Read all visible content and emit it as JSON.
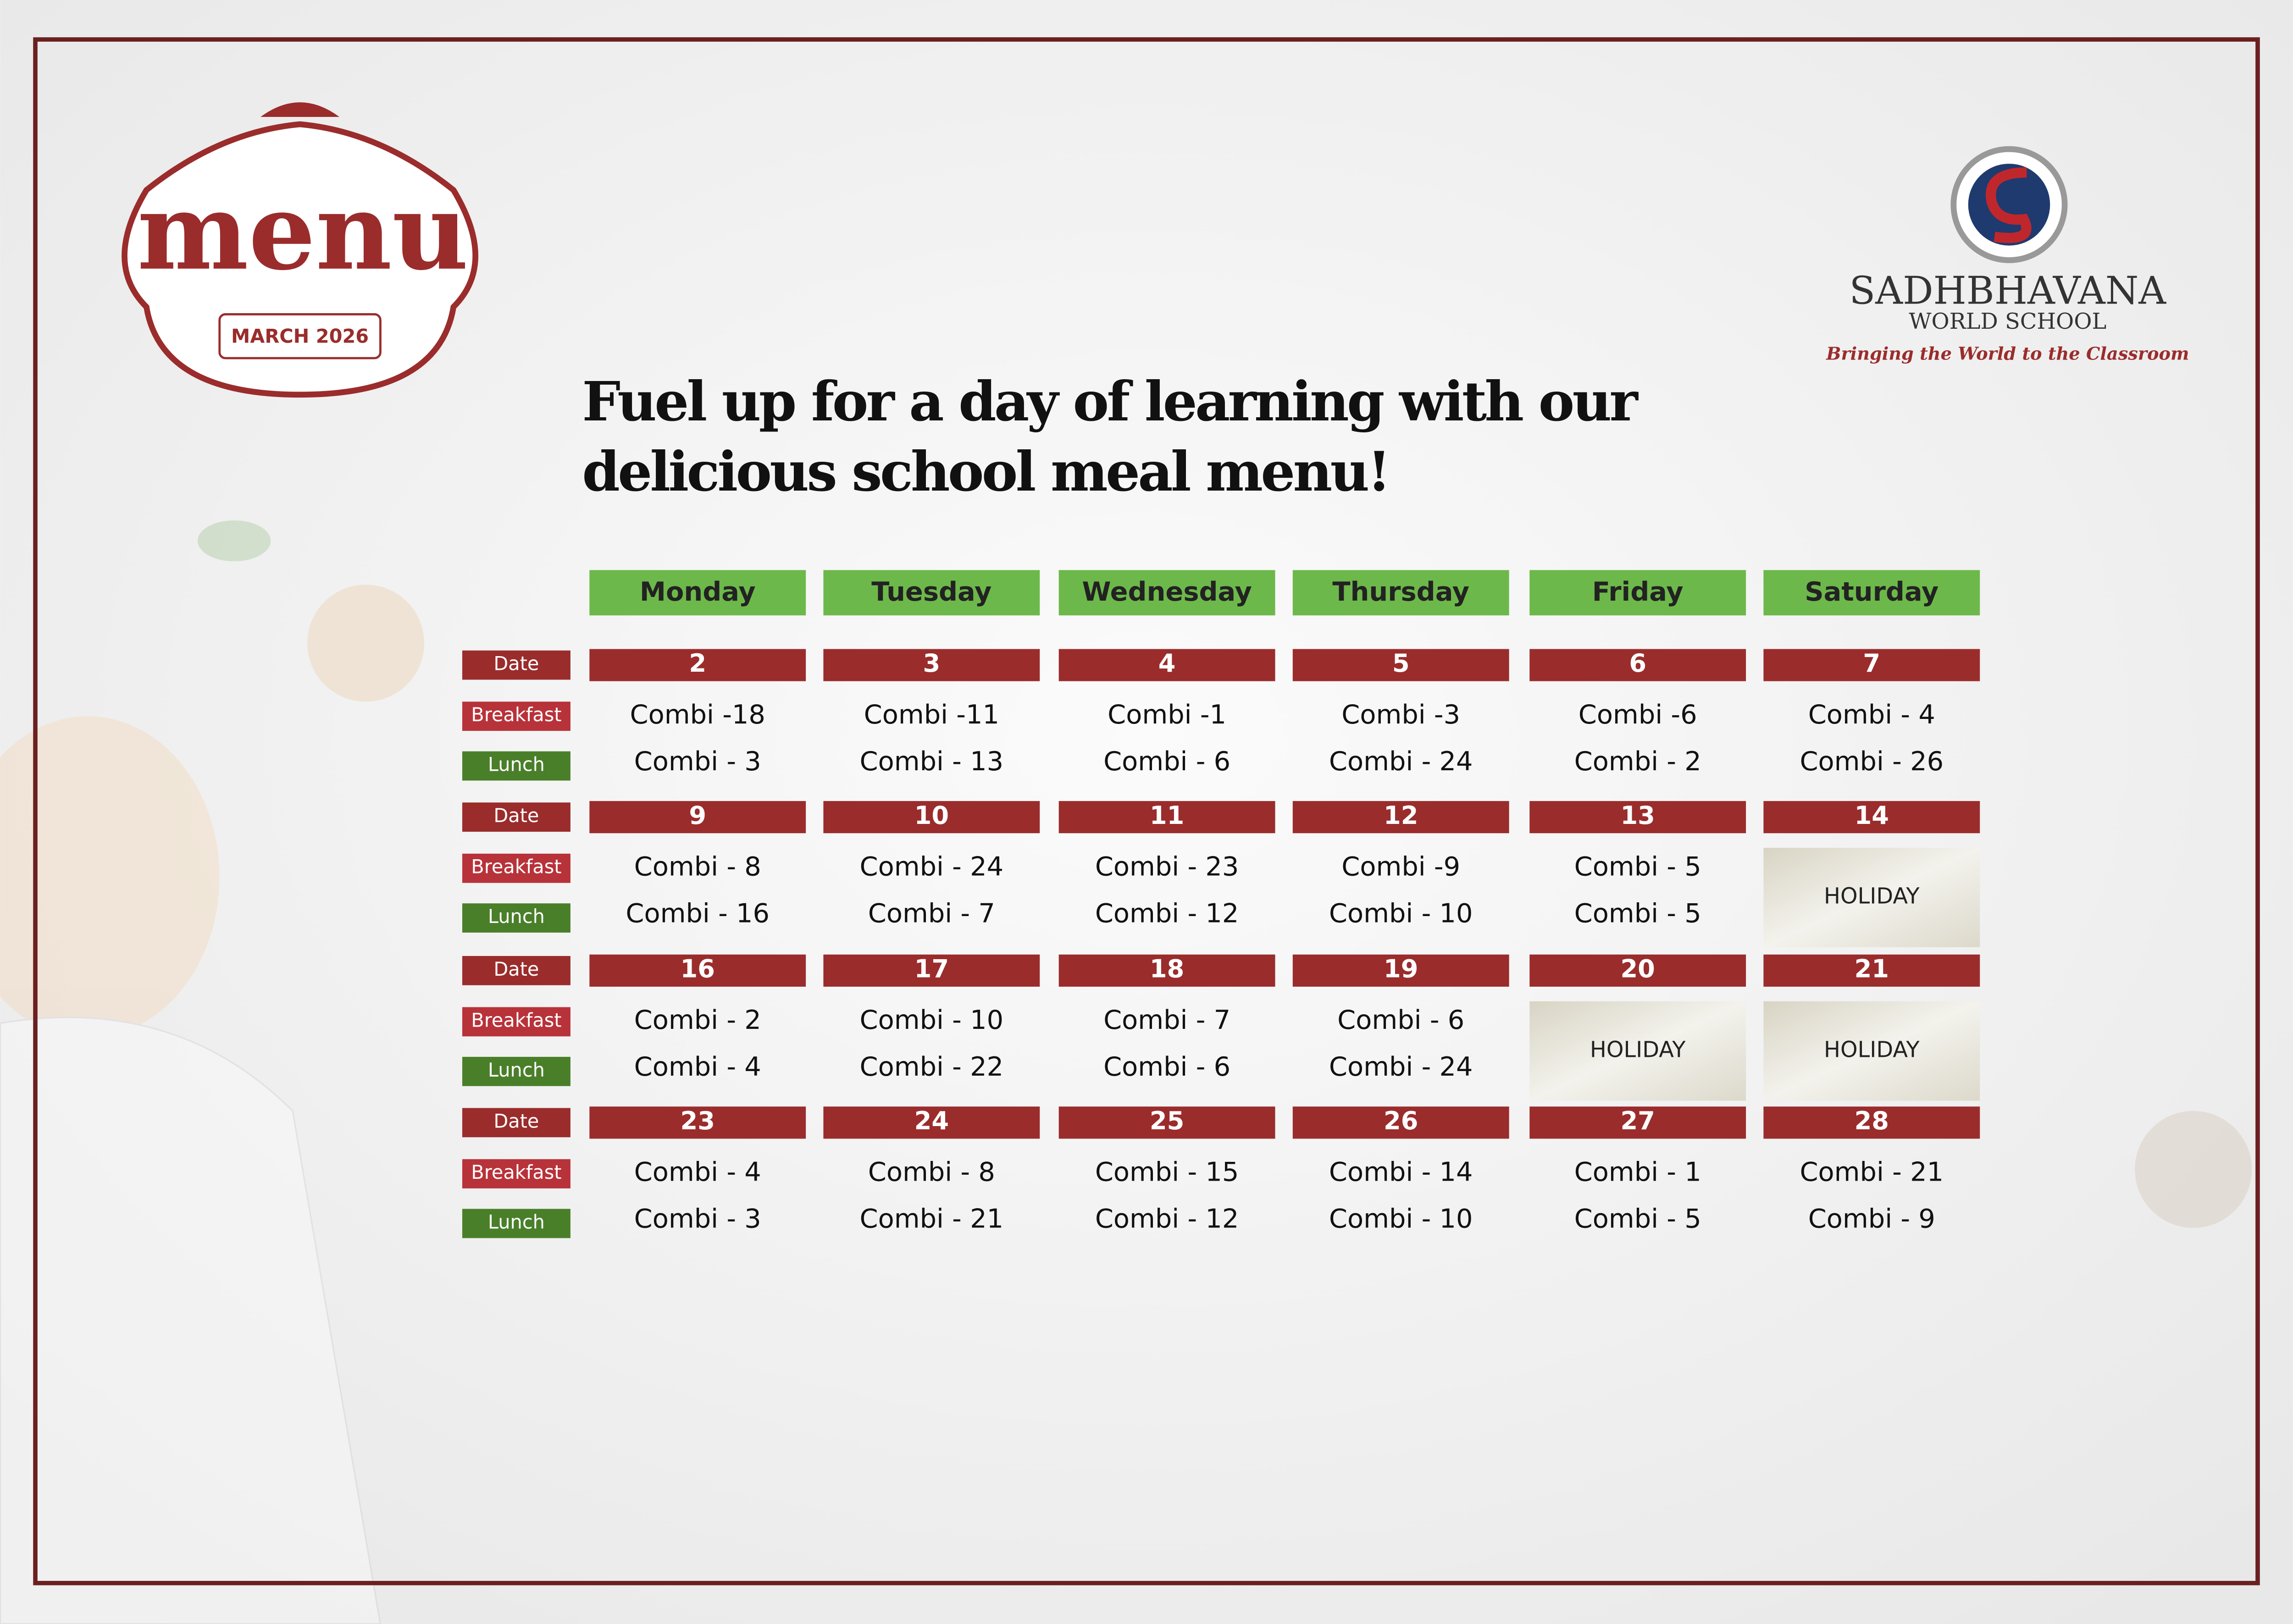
{
  "logo": {
    "word": "menu",
    "month": "MARCH 2026"
  },
  "school": {
    "name": "SADHBHAVANA",
    "subname": "WORLD SCHOOL",
    "tagline": "Bringing the World to the Classroom"
  },
  "headline": [
    "Fuel up for a day of learning with our",
    "delicious school meal menu!"
  ],
  "row_labels": {
    "date": "Date",
    "breakfast": "Breakfast",
    "lunch": "Lunch"
  },
  "days": [
    "Monday",
    "Tuesday",
    "Wednesday",
    "Thursday",
    "Friday",
    "Saturday"
  ],
  "weeks": [
    {
      "cells": [
        {
          "date": "2",
          "breakfast": "Combi -18",
          "lunch": "Combi - 3"
        },
        {
          "date": "3",
          "breakfast": "Combi -11",
          "lunch": "Combi - 13"
        },
        {
          "date": "4",
          "breakfast": "Combi -1",
          "lunch": "Combi - 6"
        },
        {
          "date": "5",
          "breakfast": "Combi -3",
          "lunch": "Combi - 24"
        },
        {
          "date": "6",
          "breakfast": "Combi -6",
          "lunch": "Combi - 2"
        },
        {
          "date": "7",
          "breakfast": "Combi - 4",
          "lunch": "Combi - 26"
        }
      ]
    },
    {
      "cells": [
        {
          "date": "9",
          "breakfast": "Combi - 8",
          "lunch": "Combi - 16"
        },
        {
          "date": "10",
          "breakfast": "Combi - 24",
          "lunch": "Combi - 7"
        },
        {
          "date": "11",
          "breakfast": "Combi - 23",
          "lunch": "Combi - 12"
        },
        {
          "date": "12",
          "breakfast": "Combi -9",
          "lunch": "Combi - 10"
        },
        {
          "date": "13",
          "breakfast": "Combi - 5",
          "lunch": "Combi - 5"
        },
        {
          "date": "14",
          "holiday": "HOLIDAY"
        }
      ]
    },
    {
      "cells": [
        {
          "date": "16",
          "breakfast": "Combi - 2",
          "lunch": "Combi - 4"
        },
        {
          "date": "17",
          "breakfast": "Combi - 10",
          "lunch": "Combi - 22"
        },
        {
          "date": "18",
          "breakfast": "Combi - 7",
          "lunch": "Combi - 6"
        },
        {
          "date": "19",
          "breakfast": "Combi - 6",
          "lunch": "Combi - 24"
        },
        {
          "date": "20",
          "holiday": "HOLIDAY"
        },
        {
          "date": "21",
          "holiday": "HOLIDAY"
        }
      ]
    },
    {
      "cells": [
        {
          "date": "23",
          "breakfast": "Combi - 4",
          "lunch": "Combi - 3"
        },
        {
          "date": "24",
          "breakfast": "Combi - 8",
          "lunch": "Combi - 21"
        },
        {
          "date": "25",
          "breakfast": "Combi - 15",
          "lunch": "Combi - 12"
        },
        {
          "date": "26",
          "breakfast": "Combi - 14",
          "lunch": "Combi - 10"
        },
        {
          "date": "27",
          "breakfast": "Combi - 1",
          "lunch": "Combi - 5"
        },
        {
          "date": "28",
          "breakfast": "Combi - 21",
          "lunch": "Combi - 9"
        }
      ]
    }
  ]
}
